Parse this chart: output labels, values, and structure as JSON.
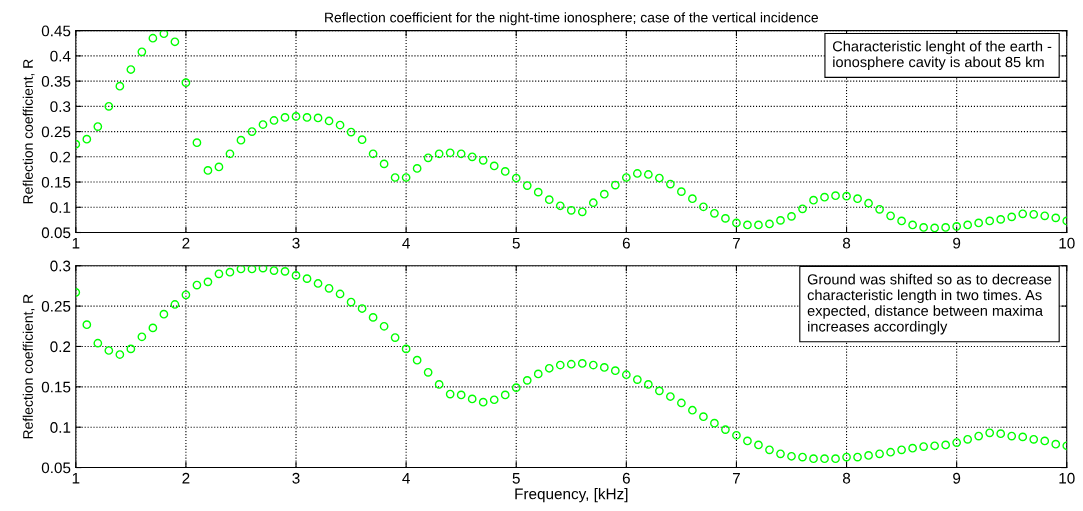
{
  "chart_data": [
    {
      "type": "scatter",
      "title": "Reflection coefficient for the night-time ionosphere; case of the vertical incidence",
      "ylabel": "Reflection coefficient, R",
      "x": [
        1.0,
        1.1,
        1.2,
        1.3,
        1.4,
        1.5,
        1.6,
        1.7,
        1.8,
        1.9,
        2.0,
        2.1,
        2.2,
        2.3,
        2.4,
        2.5,
        2.6,
        2.7,
        2.8,
        2.9,
        3.0,
        3.1,
        3.2,
        3.3,
        3.4,
        3.5,
        3.6,
        3.7,
        3.8,
        3.9,
        4.0,
        4.1,
        4.2,
        4.3,
        4.4,
        4.5,
        4.6,
        4.7,
        4.8,
        4.9,
        5.0,
        5.1,
        5.2,
        5.3,
        5.4,
        5.5,
        5.6,
        5.7,
        5.8,
        5.9,
        6.0,
        6.1,
        6.2,
        6.3,
        6.4,
        6.5,
        6.6,
        6.7,
        6.8,
        6.9,
        7.0,
        7.1,
        7.2,
        7.3,
        7.4,
        7.5,
        7.6,
        7.7,
        7.8,
        7.9,
        8.0,
        8.1,
        8.2,
        8.3,
        8.4,
        8.5,
        8.6,
        8.7,
        8.8,
        8.9,
        9.0,
        9.1,
        9.2,
        9.3,
        9.4,
        9.5,
        9.6,
        9.7,
        9.8,
        9.9,
        10.0
      ],
      "series": [
        {
          "color": "#00ff00",
          "values": [
            0.225,
            0.235,
            0.26,
            0.3,
            0.34,
            0.373,
            0.408,
            0.435,
            0.444,
            0.428,
            0.347,
            0.228,
            0.173,
            0.18,
            0.206,
            0.233,
            0.25,
            0.264,
            0.272,
            0.278,
            0.28,
            0.278,
            0.277,
            0.271,
            0.263,
            0.249,
            0.234,
            0.206,
            0.186,
            0.159,
            0.159,
            0.177,
            0.198,
            0.206,
            0.208,
            0.206,
            0.2,
            0.193,
            0.182,
            0.171,
            0.158,
            0.143,
            0.13,
            0.115,
            0.103,
            0.094,
            0.091,
            0.109,
            0.126,
            0.144,
            0.159,
            0.167,
            0.165,
            0.158,
            0.146,
            0.131,
            0.117,
            0.101,
            0.088,
            0.078,
            0.069,
            0.065,
            0.065,
            0.067,
            0.074,
            0.082,
            0.097,
            0.114,
            0.12,
            0.123,
            0.122,
            0.117,
            0.108,
            0.096,
            0.083,
            0.073,
            0.065,
            0.06,
            0.059,
            0.06,
            0.062,
            0.065,
            0.069,
            0.073,
            0.076,
            0.081,
            0.087,
            0.086,
            0.083,
            0.079,
            0.073
          ]
        }
      ],
      "xlim": [
        1,
        10
      ],
      "xticks": [
        1,
        2,
        3,
        4,
        5,
        6,
        7,
        8,
        9,
        10
      ],
      "ylim": [
        0.05,
        0.45
      ],
      "yticks": [
        0.05,
        0.1,
        0.15,
        0.2,
        0.25,
        0.3,
        0.35,
        0.4,
        0.45
      ],
      "grid": true,
      "marker": "circle",
      "annotations": [
        "Characteristic lenght of the earth -\nionosphere cavity is about 85 km"
      ]
    },
    {
      "type": "scatter",
      "xlabel": "Frequency, [kHz]",
      "ylabel": "Reflection coefficient, R",
      "x": [
        1.0,
        1.1,
        1.2,
        1.3,
        1.4,
        1.5,
        1.6,
        1.7,
        1.8,
        1.9,
        2.0,
        2.1,
        2.2,
        2.3,
        2.4,
        2.5,
        2.6,
        2.7,
        2.8,
        2.9,
        3.0,
        3.1,
        3.2,
        3.3,
        3.4,
        3.5,
        3.6,
        3.7,
        3.8,
        3.9,
        4.0,
        4.1,
        4.2,
        4.3,
        4.4,
        4.5,
        4.6,
        4.7,
        4.8,
        4.9,
        5.0,
        5.1,
        5.2,
        5.3,
        5.4,
        5.5,
        5.6,
        5.7,
        5.8,
        5.9,
        6.0,
        6.1,
        6.2,
        6.3,
        6.4,
        6.5,
        6.6,
        6.7,
        6.8,
        6.9,
        7.0,
        7.1,
        7.2,
        7.3,
        7.4,
        7.5,
        7.6,
        7.7,
        7.8,
        7.9,
        8.0,
        8.1,
        8.2,
        8.3,
        8.4,
        8.5,
        8.6,
        8.7,
        8.8,
        8.9,
        9.0,
        9.1,
        9.2,
        9.3,
        9.4,
        9.5,
        9.6,
        9.7,
        9.8,
        9.9,
        10.0
      ],
      "series": [
        {
          "color": "#00ff00",
          "values": [
            0.267,
            0.227,
            0.204,
            0.195,
            0.19,
            0.197,
            0.212,
            0.223,
            0.24,
            0.252,
            0.264,
            0.276,
            0.28,
            0.29,
            0.292,
            0.296,
            0.296,
            0.297,
            0.294,
            0.293,
            0.288,
            0.284,
            0.278,
            0.272,
            0.265,
            0.255,
            0.247,
            0.236,
            0.225,
            0.211,
            0.197,
            0.183,
            0.168,
            0.153,
            0.141,
            0.14,
            0.135,
            0.131,
            0.134,
            0.14,
            0.149,
            0.158,
            0.166,
            0.173,
            0.177,
            0.178,
            0.179,
            0.177,
            0.174,
            0.17,
            0.165,
            0.159,
            0.153,
            0.145,
            0.138,
            0.13,
            0.121,
            0.113,
            0.105,
            0.097,
            0.09,
            0.083,
            0.078,
            0.072,
            0.067,
            0.064,
            0.063,
            0.061,
            0.061,
            0.061,
            0.063,
            0.063,
            0.065,
            0.067,
            0.069,
            0.072,
            0.074,
            0.076,
            0.077,
            0.078,
            0.081,
            0.085,
            0.089,
            0.093,
            0.092,
            0.089,
            0.088,
            0.085,
            0.083,
            0.079,
            0.077
          ]
        }
      ],
      "xlim": [
        1,
        10
      ],
      "xticks": [
        1,
        2,
        3,
        4,
        5,
        6,
        7,
        8,
        9,
        10
      ],
      "ylim": [
        0.05,
        0.3
      ],
      "yticks": [
        0.05,
        0.1,
        0.15,
        0.2,
        0.25,
        0.3
      ],
      "grid": true,
      "marker": "circle",
      "annotations": [
        "Ground was shifted so as to decrease\ncharacteristic length in two times. As\nexpected, distance between maxima\nincreases accordingly"
      ]
    }
  ]
}
